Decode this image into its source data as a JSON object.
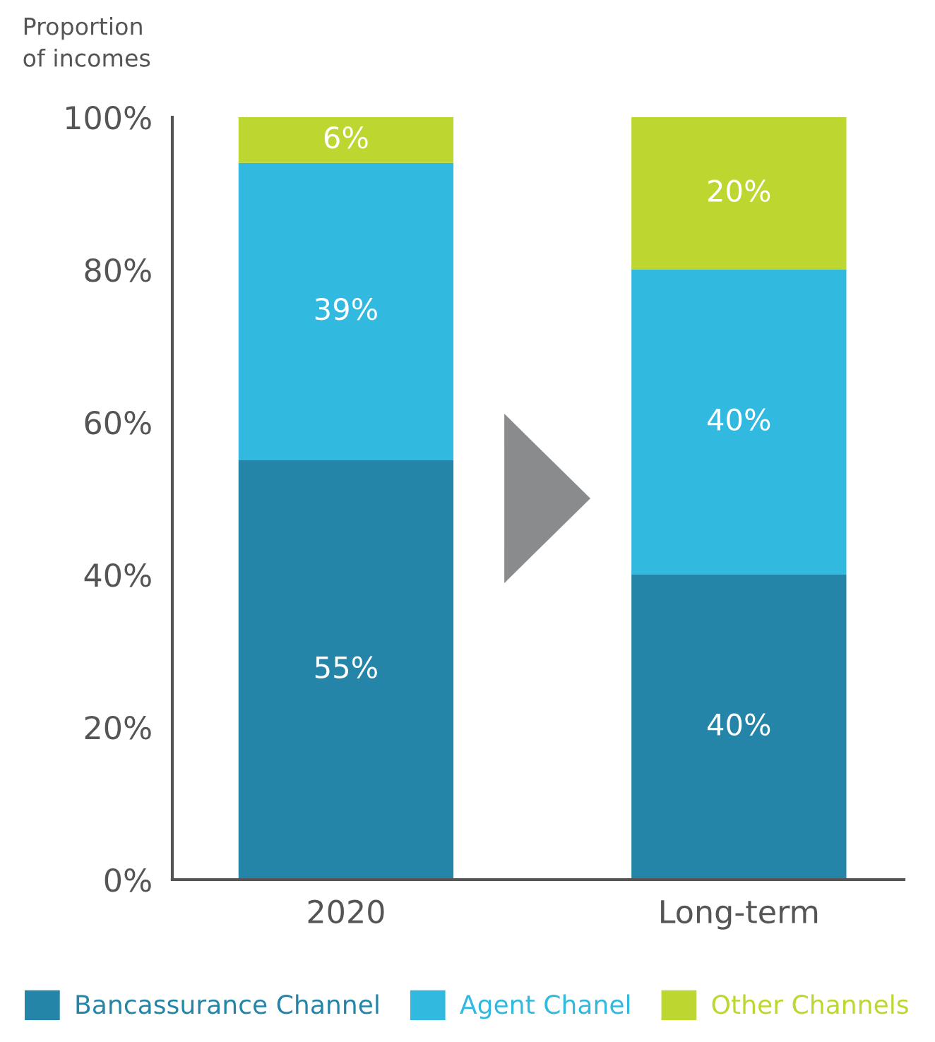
{
  "chart_data": {
    "type": "bar",
    "stacked": true,
    "ylabel": "Proportion\nof incomes",
    "categories": [
      "2020",
      "Long-term"
    ],
    "series": [
      {
        "name": "Bancassurance Channel",
        "color": "#2585a8",
        "values": [
          55,
          40
        ],
        "value_labels": [
          "55%",
          "40%"
        ]
      },
      {
        "name": "Agent Chanel",
        "color": "#31b9e0",
        "values": [
          39,
          40
        ],
        "value_labels": [
          "39%",
          "40%"
        ]
      },
      {
        "name": "Other Channels",
        "color": "#bdd730",
        "values": [
          6,
          20
        ],
        "value_labels": [
          "6%",
          "20%"
        ]
      }
    ],
    "ylim": [
      0,
      100
    ],
    "yticks": [
      {
        "value": 0,
        "label": "0%"
      },
      {
        "value": 20,
        "label": "20%"
      },
      {
        "value": 40,
        "label": "40%"
      },
      {
        "value": 60,
        "label": "60%"
      },
      {
        "value": 80,
        "label": "80%"
      },
      {
        "value": 100,
        "label": "100%"
      }
    ],
    "legend": "bottom",
    "grid": false
  }
}
